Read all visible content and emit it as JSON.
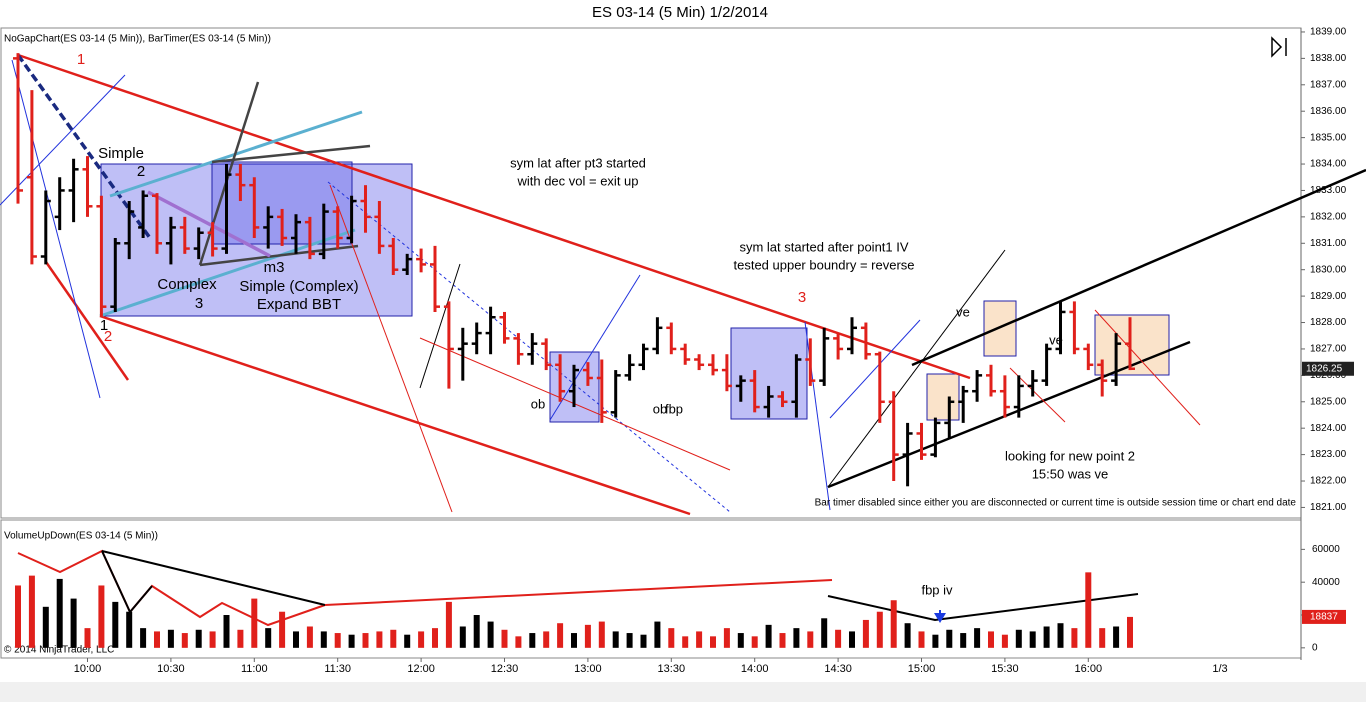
{
  "title": "ES 03-14 (5 Min)  1/2/2014",
  "chart_data": [
    {
      "type": "ohlc",
      "label": "NoGapChart(ES 03-14 (5 Min)), BarTimer(ES 03-14 (5 Min))",
      "up_color": "#000000",
      "down_color": "#e0201b",
      "categories": [
        null,
        null,
        null,
        null,
        null,
        "10:00",
        null,
        null,
        null,
        null,
        null,
        "10:30",
        null,
        null,
        null,
        null,
        null,
        "11:00",
        null,
        null,
        null,
        null,
        null,
        "11:30",
        null,
        null,
        null,
        null,
        null,
        "12:00",
        null,
        null,
        null,
        null,
        null,
        "12:30",
        null,
        null,
        null,
        null,
        null,
        "13:00",
        null,
        null,
        null,
        null,
        null,
        "13:30",
        null,
        null,
        null,
        null,
        null,
        "14:00",
        null,
        null,
        null,
        null,
        null,
        "14:30",
        null,
        null,
        null,
        null,
        null,
        "15:00",
        null,
        null,
        null,
        null,
        null,
        "15:30",
        null,
        null,
        null,
        null,
        null,
        "16:00",
        null,
        null,
        null
      ],
      "date_tick": "1/3",
      "bars": [
        [
          1838,
          1838.2,
          1832.5,
          1833
        ],
        [
          1833.5,
          1836.8,
          1830.2,
          1830.5
        ],
        [
          1830.5,
          1833,
          1830.2,
          1832.6
        ],
        [
          1832,
          1833.5,
          1831.5,
          1833
        ],
        [
          1833,
          1834.2,
          1831.8,
          1833.8
        ],
        [
          1833.8,
          1834.3,
          1832,
          1832.4
        ],
        [
          1832.4,
          1832.8,
          1828.2,
          1828.6
        ],
        [
          1828.6,
          1831.2,
          1828.4,
          1831
        ],
        [
          1831,
          1832.6,
          1830.4,
          1832.2
        ],
        [
          1831.6,
          1833,
          1831.2,
          1832.8
        ],
        [
          1832.8,
          1832.9,
          1830.6,
          1831
        ],
        [
          1831,
          1832,
          1830.2,
          1831.6
        ],
        [
          1831.6,
          1832,
          1830.6,
          1830.8
        ],
        [
          1830.8,
          1831.6,
          1830.4,
          1831.4
        ],
        [
          1831.4,
          1831.8,
          1830.5,
          1830.8
        ],
        [
          1830.8,
          1834,
          1830.6,
          1833.6
        ],
        [
          1833.6,
          1834,
          1832.6,
          1833.2
        ],
        [
          1833.2,
          1833.5,
          1831.2,
          1831.6
        ],
        [
          1831.6,
          1832.4,
          1830.8,
          1832
        ],
        [
          1832,
          1832.3,
          1830.9,
          1831.2
        ],
        [
          1831.2,
          1832.1,
          1830.6,
          1831.8
        ],
        [
          1831.8,
          1832,
          1830.4,
          1830.6
        ],
        [
          1830.6,
          1832.5,
          1830.4,
          1832.2
        ],
        [
          1832.2,
          1832.4,
          1830.8,
          1831.2
        ],
        [
          1831.2,
          1832.8,
          1831,
          1832.6
        ],
        [
          1832.6,
          1833.2,
          1831.4,
          1832
        ],
        [
          1832,
          1832.6,
          1830.6,
          1830.9
        ],
        [
          1830.9,
          1831.2,
          1829.8,
          1830
        ],
        [
          1830,
          1830.6,
          1829.8,
          1830.4
        ],
        [
          1830.4,
          1830.8,
          1829.9,
          1830.2
        ],
        [
          1830.2,
          1830.9,
          1828.4,
          1828.6
        ],
        [
          1828.6,
          1828.8,
          1825.5,
          1827
        ],
        [
          1827,
          1827.8,
          1825.8,
          1827.2
        ],
        [
          1827.2,
          1828,
          1826.8,
          1827.6
        ],
        [
          1827.6,
          1828.6,
          1826.8,
          1828.2
        ],
        [
          1828.2,
          1828.4,
          1827.2,
          1827.4
        ],
        [
          1827.4,
          1827.6,
          1826.4,
          1826.8
        ],
        [
          1826.8,
          1827.6,
          1826.4,
          1827.2
        ],
        [
          1827.2,
          1827.4,
          1826.2,
          1826.4
        ],
        [
          1826.4,
          1826.8,
          1825,
          1825.4
        ],
        [
          1825.4,
          1826.4,
          1824.8,
          1826.2
        ],
        [
          1826.2,
          1826.5,
          1825.6,
          1825.9
        ],
        [
          1825.9,
          1826.6,
          1824.2,
          1824.6
        ],
        [
          1824.6,
          1826.2,
          1824.4,
          1826
        ],
        [
          1826,
          1826.8,
          1825.8,
          1826.4
        ],
        [
          1826.4,
          1827.2,
          1826.2,
          1827
        ],
        [
          1827,
          1828.2,
          1826.8,
          1827.8
        ],
        [
          1827.8,
          1828,
          1826.8,
          1827
        ],
        [
          1827,
          1827.2,
          1826.4,
          1826.6
        ],
        [
          1826.6,
          1826.8,
          1826.2,
          1826.4
        ],
        [
          1826.4,
          1826.8,
          1826,
          1826.2
        ],
        [
          1826.2,
          1826.8,
          1825.4,
          1825.6
        ],
        [
          1825.6,
          1826,
          1825,
          1825.8
        ],
        [
          1825.8,
          1826.2,
          1824.6,
          1824.8
        ],
        [
          1824.8,
          1825.6,
          1824.4,
          1825.2
        ],
        [
          1825.2,
          1825.4,
          1824.8,
          1825
        ],
        [
          1825,
          1826.8,
          1824.4,
          1826.6
        ],
        [
          1826.6,
          1827.4,
          1825.6,
          1825.8
        ],
        [
          1825.8,
          1827.8,
          1825.6,
          1827.4
        ],
        [
          1827.4,
          1827.6,
          1826.6,
          1827
        ],
        [
          1827,
          1828.2,
          1826.8,
          1827.8
        ],
        [
          1827.8,
          1828,
          1826.6,
          1826.8
        ],
        [
          1826.8,
          1826.9,
          1824.2,
          1825
        ],
        [
          1825,
          1825.4,
          1822,
          1823
        ],
        [
          1823,
          1824.2,
          1821.8,
          1823.8
        ],
        [
          1823.8,
          1824.2,
          1822.8,
          1823
        ],
        [
          1823,
          1824.4,
          1822.9,
          1824.2
        ],
        [
          1824.2,
          1825.2,
          1823.6,
          1825
        ],
        [
          1825,
          1825.6,
          1824.2,
          1825.4
        ],
        [
          1825.4,
          1826.2,
          1825,
          1826
        ],
        [
          1826,
          1826.4,
          1825.2,
          1825.4
        ],
        [
          1825.4,
          1826,
          1824.4,
          1824.8
        ],
        [
          1824.8,
          1826,
          1824.4,
          1825.6
        ],
        [
          1825.6,
          1826.2,
          1825.2,
          1825.8
        ],
        [
          1825.8,
          1827.2,
          1825.6,
          1827
        ],
        [
          1827,
          1828.8,
          1826.8,
          1828.4
        ],
        [
          1828.4,
          1828.8,
          1826.8,
          1827
        ],
        [
          1827,
          1827.2,
          1826.2,
          1826.4
        ],
        [
          1826.4,
          1826.6,
          1825.2,
          1825.8
        ],
        [
          1825.8,
          1827.6,
          1825.6,
          1827.2
        ],
        [
          1827.2,
          1828.2,
          1826.2,
          1826.25
        ]
      ],
      "ylim": [
        1820.6,
        1839.15
      ],
      "yticks": [
        {
          "value": 1821,
          "label": "1821.00"
        },
        {
          "value": 1822,
          "label": "1822.00"
        },
        {
          "value": 1823,
          "label": "1823.00"
        },
        {
          "value": 1824,
          "label": "1824.00"
        },
        {
          "value": 1825,
          "label": "1825.00"
        },
        {
          "value": 1826,
          "label": "1826.00"
        },
        {
          "value": 1827,
          "label": "1827.00"
        },
        {
          "value": 1828,
          "label": "1828.00"
        },
        {
          "value": 1829,
          "label": "1829.00"
        },
        {
          "value": 1830,
          "label": "1830.00"
        },
        {
          "value": 1831,
          "label": "1831.00"
        },
        {
          "value": 1832,
          "label": "1832.00"
        },
        {
          "value": 1833,
          "label": "1833.00"
        },
        {
          "value": 1834,
          "label": "1834.00"
        },
        {
          "value": 1835,
          "label": "1835.00"
        },
        {
          "value": 1836,
          "label": "1836.00"
        },
        {
          "value": 1837,
          "label": "1837.00"
        },
        {
          "value": 1838,
          "label": "1838.00"
        },
        {
          "value": 1839,
          "label": "1839.00"
        }
      ],
      "last": {
        "value": 1826.25,
        "label": "1826.25"
      }
    },
    {
      "type": "bar",
      "label": "VolumeUpDown(ES 03-14 (5 Min))",
      "values": [
        38000,
        44000,
        25000,
        42000,
        30000,
        12000,
        38000,
        28000,
        22000,
        12000,
        10000,
        11000,
        9000,
        11000,
        10000,
        20000,
        11000,
        30000,
        12000,
        22000,
        10000,
        13000,
        10000,
        9000,
        8000,
        9000,
        10000,
        11000,
        8000,
        10000,
        12000,
        28000,
        13000,
        20000,
        16000,
        11000,
        7000,
        9000,
        10000,
        15000,
        9000,
        14000,
        16000,
        10000,
        9000,
        8000,
        16000,
        12000,
        7000,
        10000,
        7000,
        12000,
        9000,
        7000,
        14000,
        9000,
        12000,
        10000,
        18000,
        11000,
        10000,
        17000,
        22000,
        29000,
        15000,
        10000,
        8000,
        11000,
        9000,
        12000,
        10000,
        8000,
        11000,
        10000,
        13000,
        15000,
        12000,
        46000,
        12000,
        13000,
        18837
      ],
      "ylim": [
        -6200,
        77900
      ],
      "yticks": [
        0,
        20000,
        40000,
        60000
      ],
      "last": 18837
    }
  ],
  "annotations": [
    "1",
    "Simple",
    "2",
    "Complex",
    "3",
    "m3",
    "Simple (Complex)",
    "Expand BBT",
    "1",
    "2",
    "sym lat after pt3 started",
    "with dec vol = exit up",
    "sym lat started after point1 IV",
    "tested upper boundry = reverse",
    "3",
    "ob",
    "ob",
    "fbp",
    "ve",
    "ve",
    "looking for new point 2",
    "15:50 was ve",
    "fbp iv"
  ],
  "notice": "Bar timer disabled since either you are disconnected or current time is outside session time or chart end date",
  "copyright": "© 2014 NinjaTrader, LLC"
}
